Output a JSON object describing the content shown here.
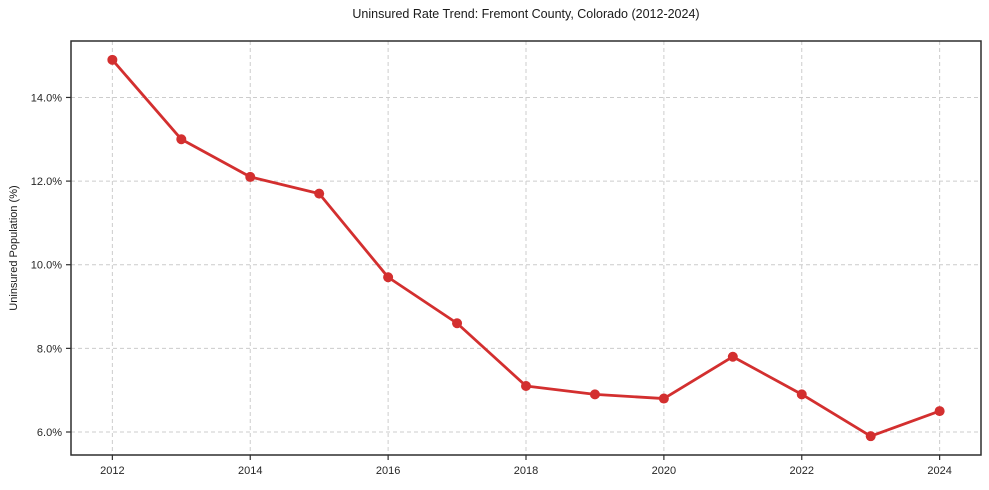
{
  "chart_data": {
    "type": "line",
    "title": "Uninsured Rate Trend: Fremont County, Colorado (2012-2024)",
    "xlabel": "",
    "ylabel": "Uninsured Population (%)",
    "x": [
      2012,
      2013,
      2014,
      2015,
      2016,
      2017,
      2018,
      2019,
      2020,
      2021,
      2022,
      2023,
      2024
    ],
    "values": [
      14.9,
      13.0,
      12.1,
      11.7,
      9.7,
      8.6,
      7.1,
      6.9,
      6.8,
      7.8,
      6.9,
      5.9,
      6.5
    ],
    "xlim": [
      2011.4,
      2024.6
    ],
    "ylim": [
      5.45,
      15.35
    ],
    "x_ticks": [
      {
        "value": 2012,
        "label": "2012"
      },
      {
        "value": 2014,
        "label": "2014"
      },
      {
        "value": 2016,
        "label": "2016"
      },
      {
        "value": 2018,
        "label": "2018"
      },
      {
        "value": 2020,
        "label": "2020"
      },
      {
        "value": 2022,
        "label": "2022"
      },
      {
        "value": 2024,
        "label": "2024"
      }
    ],
    "y_ticks": [
      {
        "value": 6.0,
        "label": "6.0%"
      },
      {
        "value": 8.0,
        "label": "8.0%"
      },
      {
        "value": 10.0,
        "label": "10.0%"
      },
      {
        "value": 12.0,
        "label": "12.0%"
      },
      {
        "value": 14.0,
        "label": "14.0%"
      }
    ],
    "grid": true,
    "legend": "none",
    "colors": {
      "line": "#d32f2f",
      "marker": "#d32f2f",
      "grid": "#cccccc",
      "axis": "#2e2e2e",
      "tick_text": "#262626"
    },
    "marker": "circle",
    "marker_radius": 5,
    "line_width": 2.8
  }
}
